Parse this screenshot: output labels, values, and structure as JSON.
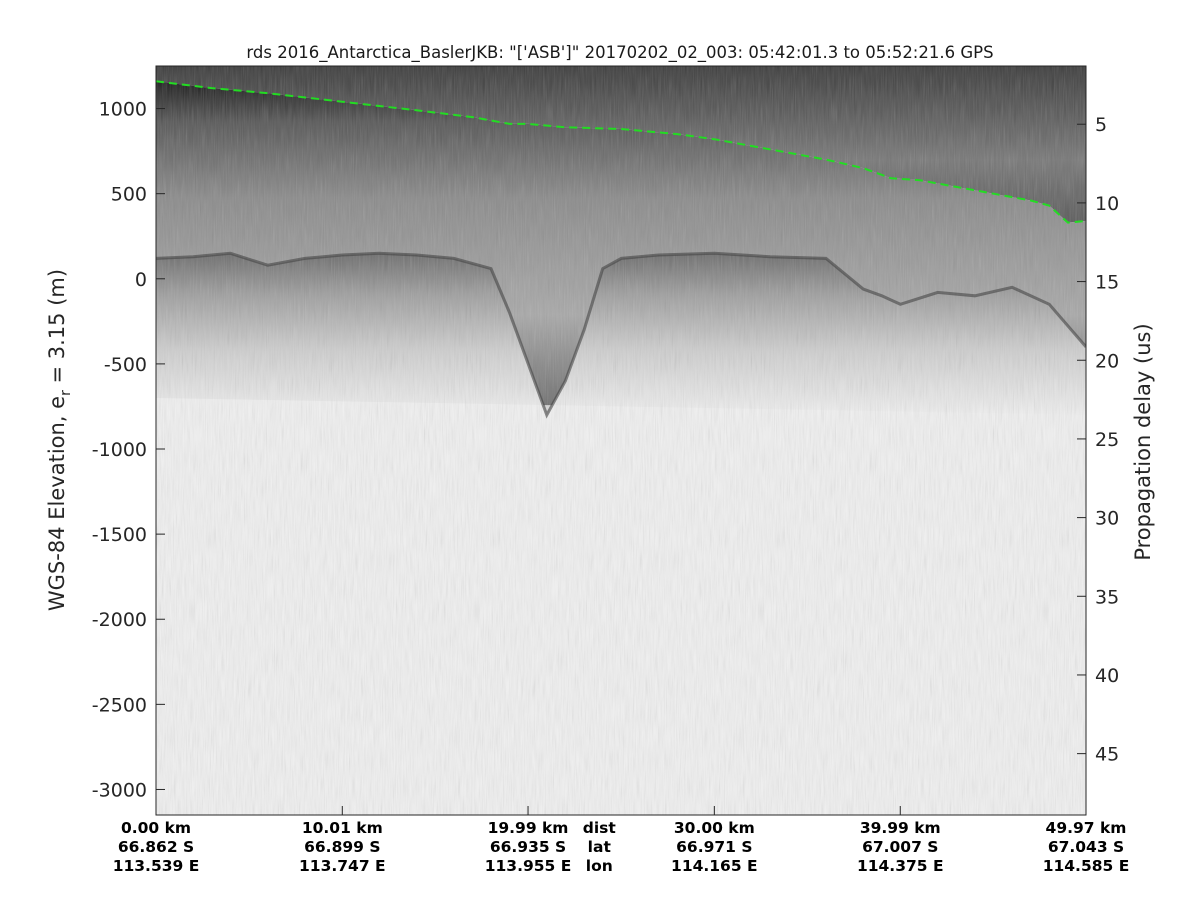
{
  "chart_data": {
    "type": "heatmap",
    "title": "rds 2016_Antarctica_BaslerJKB: \"['ASB']\"  20170202_02_003: 05:42:01.3 to 05:52:21.6 GPS",
    "ylabel_left": "WGS-84 Elevation, e",
    "ylabel_left_sub": "r",
    "ylabel_left_tail": " = 3.15 (m)",
    "ylabel_right": "Propagation delay (us)",
    "colormap": "gray",
    "ylim_elevation_m": [
      -3150,
      1250
    ],
    "ylim_delay_us": [
      1.3,
      48.9
    ],
    "x_range_km": [
      0,
      49.97
    ],
    "grid": false,
    "y_ticks_left": [
      1000,
      500,
      0,
      -500,
      -1000,
      -1500,
      -2000,
      -2500,
      -3000
    ],
    "y_tick_labels_left": [
      "1000",
      "500",
      "0",
      "-500",
      "-1000",
      "-1500",
      "-2000",
      "-2500",
      "-3000"
    ],
    "y_ticks_right": [
      5,
      10,
      15,
      20,
      25,
      30,
      35,
      40,
      45
    ],
    "y_tick_labels_right": [
      "5",
      "10",
      "15",
      "20",
      "25",
      "30",
      "35",
      "40",
      "45"
    ],
    "x_ticks": [
      {
        "pos_km": 0,
        "dist": "0.00 km",
        "lat": "66.862 S",
        "lon": "113.539 E"
      },
      {
        "pos_km": 10.01,
        "dist": "10.01 km",
        "lat": "66.899 S",
        "lon": "113.747 E"
      },
      {
        "pos_km": 19.99,
        "dist": "19.99 km",
        "lat": "66.935 S",
        "lon": "113.955 E"
      },
      {
        "pos_km": 30.0,
        "dist": "30.00 km",
        "lat": "66.971 S",
        "lon": "114.165 E"
      },
      {
        "pos_km": 39.99,
        "dist": "39.99 km",
        "lat": "67.007 S",
        "lon": "114.375 E"
      },
      {
        "pos_km": 49.97,
        "dist": "49.97 km",
        "lat": "67.043 S",
        "lon": "114.585 E"
      }
    ],
    "x_row_labels": {
      "pos_km": 25.0,
      "dist": "dist",
      "lat": "lat",
      "lon": "lon"
    },
    "surface_pick": {
      "color": "#22dd22",
      "style": "dashed",
      "distance_km": [
        0,
        3,
        6,
        10,
        14,
        17,
        19,
        20,
        22,
        25,
        28,
        30,
        33,
        36,
        38,
        39.5,
        41,
        43,
        45,
        47,
        48,
        49,
        49.97
      ],
      "elevation_m": [
        1160,
        1120,
        1090,
        1040,
        990,
        950,
        910,
        910,
        890,
        880,
        850,
        820,
        760,
        700,
        650,
        590,
        580,
        540,
        500,
        460,
        430,
        330,
        340
      ]
    },
    "bed_reflector": {
      "distance_km": [
        0,
        2,
        4,
        6,
        8,
        9,
        10,
        12,
        14,
        16,
        18,
        19,
        20,
        21,
        22,
        23,
        24,
        25,
        27,
        30,
        33,
        36,
        38,
        39,
        40,
        42,
        44,
        46,
        48,
        49.97
      ],
      "elevation_m": [
        120,
        130,
        150,
        80,
        120,
        130,
        140,
        150,
        140,
        120,
        60,
        -200,
        -500,
        -800,
        -600,
        -300,
        60,
        120,
        140,
        150,
        130,
        120,
        -60,
        -100,
        -150,
        -80,
        -100,
        -50,
        -150,
        -400
      ]
    }
  }
}
